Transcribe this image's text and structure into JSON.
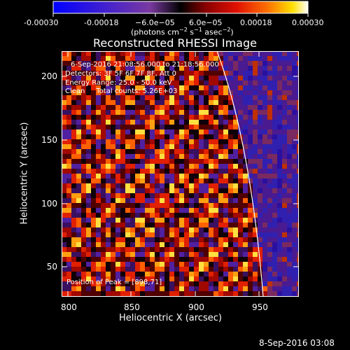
{
  "colorbar": {
    "ticks": [
      "-0.00030",
      "-0.00018",
      "−6.0e−05",
      "6.0e−05",
      "0.00018",
      "0.00030"
    ],
    "units_prefix": "(photons cm",
    "units_exp1": "−2",
    "units_mid": " s",
    "units_exp2": "−1",
    "units_mid2": " asec",
    "units_exp3": "−2",
    "units_suffix": ")"
  },
  "title": "Reconstructed RHESSI Image",
  "info": {
    "line1": "6-Sep-2016 21:08:56.000 to 21:18:56.000",
    "line2": "Detectors: 3F 5F 6F 7F 8F, Att 0",
    "line3": "Energy Range: 25.0 - 50.0 keV",
    "line4": "Clean     Total counts: 5.26E+03"
  },
  "peak": "Position of Peak = [898,71]",
  "axes": {
    "xlabel": "Heliocentric X (arcsec)",
    "ylabel": "Heliocentric Y (arcsec)",
    "xticks": [
      "800",
      "850",
      "900",
      "950"
    ],
    "yticks": [
      "200",
      "150",
      "100",
      "50"
    ],
    "xlim": [
      786,
      982
    ],
    "ylim": [
      26,
      222
    ]
  },
  "timestamp": "8-Sep-2016 03:08",
  "colors": {
    "bg": "#000000",
    "limb": "#ffffff"
  }
}
